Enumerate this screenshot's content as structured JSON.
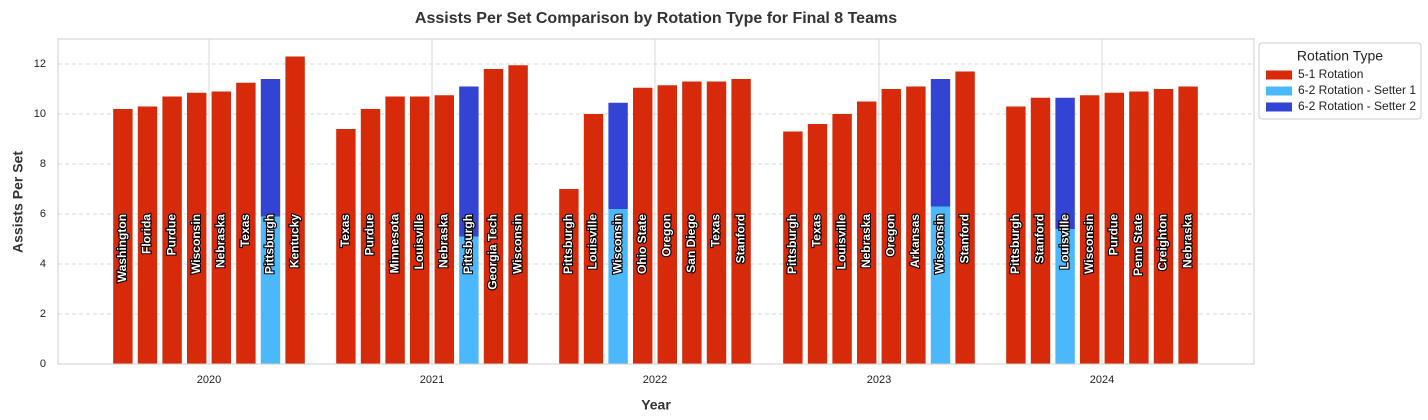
{
  "chart_data": {
    "type": "bar",
    "title": "Assists Per Set Comparison by Rotation Type for Final 8 Teams",
    "xlabel": "Year",
    "ylabel": "Assists Per Set",
    "ylim": [
      0,
      13
    ],
    "yticks": [
      0,
      2,
      4,
      6,
      8,
      10,
      12
    ],
    "grid": true,
    "legend": {
      "title": "Rotation Type",
      "placement": "outside-top-right",
      "entries": [
        {
          "name": "5-1 Rotation",
          "color": "#d62a0a"
        },
        {
          "name": "6-2 Rotation - Setter 1",
          "color": "#4bb8fc"
        },
        {
          "name": "6-2 Rotation - Setter 2",
          "color": "#3344d4"
        }
      ]
    },
    "groups": [
      {
        "year": "2020",
        "teams": [
          {
            "team": "Washington",
            "rotation": "5-1",
            "value": 10.2
          },
          {
            "team": "Florida",
            "rotation": "5-1",
            "value": 10.3
          },
          {
            "team": "Purdue",
            "rotation": "5-1",
            "value": 10.7
          },
          {
            "team": "Wisconsin",
            "rotation": "5-1",
            "value": 10.85
          },
          {
            "team": "Nebraska",
            "rotation": "5-1",
            "value": 10.9
          },
          {
            "team": "Texas",
            "rotation": "5-1",
            "value": 11.25
          },
          {
            "team": "Pittsburgh",
            "rotation": "6-2",
            "setter1": 5.9,
            "setter2": 5.5
          },
          {
            "team": "Kentucky",
            "rotation": "5-1",
            "value": 12.3
          }
        ]
      },
      {
        "year": "2021",
        "teams": [
          {
            "team": "Texas",
            "rotation": "5-1",
            "value": 9.4
          },
          {
            "team": "Purdue",
            "rotation": "5-1",
            "value": 10.2
          },
          {
            "team": "Minnesota",
            "rotation": "5-1",
            "value": 10.7
          },
          {
            "team": "Louisville",
            "rotation": "5-1",
            "value": 10.7
          },
          {
            "team": "Nebraska",
            "rotation": "5-1",
            "value": 10.75
          },
          {
            "team": "Pittsburgh",
            "rotation": "6-2",
            "setter1": 5.1,
            "setter2": 6.0
          },
          {
            "team": "Georgia Tech",
            "rotation": "5-1",
            "value": 11.8
          },
          {
            "team": "Wisconsin",
            "rotation": "5-1",
            "value": 11.95
          }
        ]
      },
      {
        "year": "2022",
        "teams": [
          {
            "team": "Pittsburgh",
            "rotation": "5-1",
            "value": 7.0
          },
          {
            "team": "Louisville",
            "rotation": "5-1",
            "value": 10.0
          },
          {
            "team": "Wisconsin",
            "rotation": "6-2",
            "setter1": 6.2,
            "setter2": 4.25
          },
          {
            "team": "Ohio State",
            "rotation": "5-1",
            "value": 11.05
          },
          {
            "team": "Oregon",
            "rotation": "5-1",
            "value": 11.15
          },
          {
            "team": "San Diego",
            "rotation": "5-1",
            "value": 11.3
          },
          {
            "team": "Texas",
            "rotation": "5-1",
            "value": 11.3
          },
          {
            "team": "Stanford",
            "rotation": "5-1",
            "value": 11.4
          }
        ]
      },
      {
        "year": "2023",
        "teams": [
          {
            "team": "Pittsburgh",
            "rotation": "5-1",
            "value": 9.3
          },
          {
            "team": "Texas",
            "rotation": "5-1",
            "value": 9.6
          },
          {
            "team": "Louisville",
            "rotation": "5-1",
            "value": 10.0
          },
          {
            "team": "Nebraska",
            "rotation": "5-1",
            "value": 10.5
          },
          {
            "team": "Oregon",
            "rotation": "5-1",
            "value": 11.0
          },
          {
            "team": "Arkansas",
            "rotation": "5-1",
            "value": 11.1
          },
          {
            "team": "Wisconsin",
            "rotation": "6-2",
            "setter1": 6.3,
            "setter2": 5.1
          },
          {
            "team": "Stanford",
            "rotation": "5-1",
            "value": 11.7
          }
        ]
      },
      {
        "year": "2024",
        "teams": [
          {
            "team": "Pittsburgh",
            "rotation": "5-1",
            "value": 10.3
          },
          {
            "team": "Stanford",
            "rotation": "5-1",
            "value": 10.65
          },
          {
            "team": "Louisville",
            "rotation": "6-2",
            "setter1": 5.4,
            "setter2": 5.25
          },
          {
            "team": "Wisconsin",
            "rotation": "5-1",
            "value": 10.75
          },
          {
            "team": "Purdue",
            "rotation": "5-1",
            "value": 10.85
          },
          {
            "team": "Penn State",
            "rotation": "5-1",
            "value": 10.9
          },
          {
            "team": "Creighton",
            "rotation": "5-1",
            "value": 11.0
          },
          {
            "team": "Nebraska",
            "rotation": "5-1",
            "value": 11.1
          }
        ]
      }
    ]
  }
}
